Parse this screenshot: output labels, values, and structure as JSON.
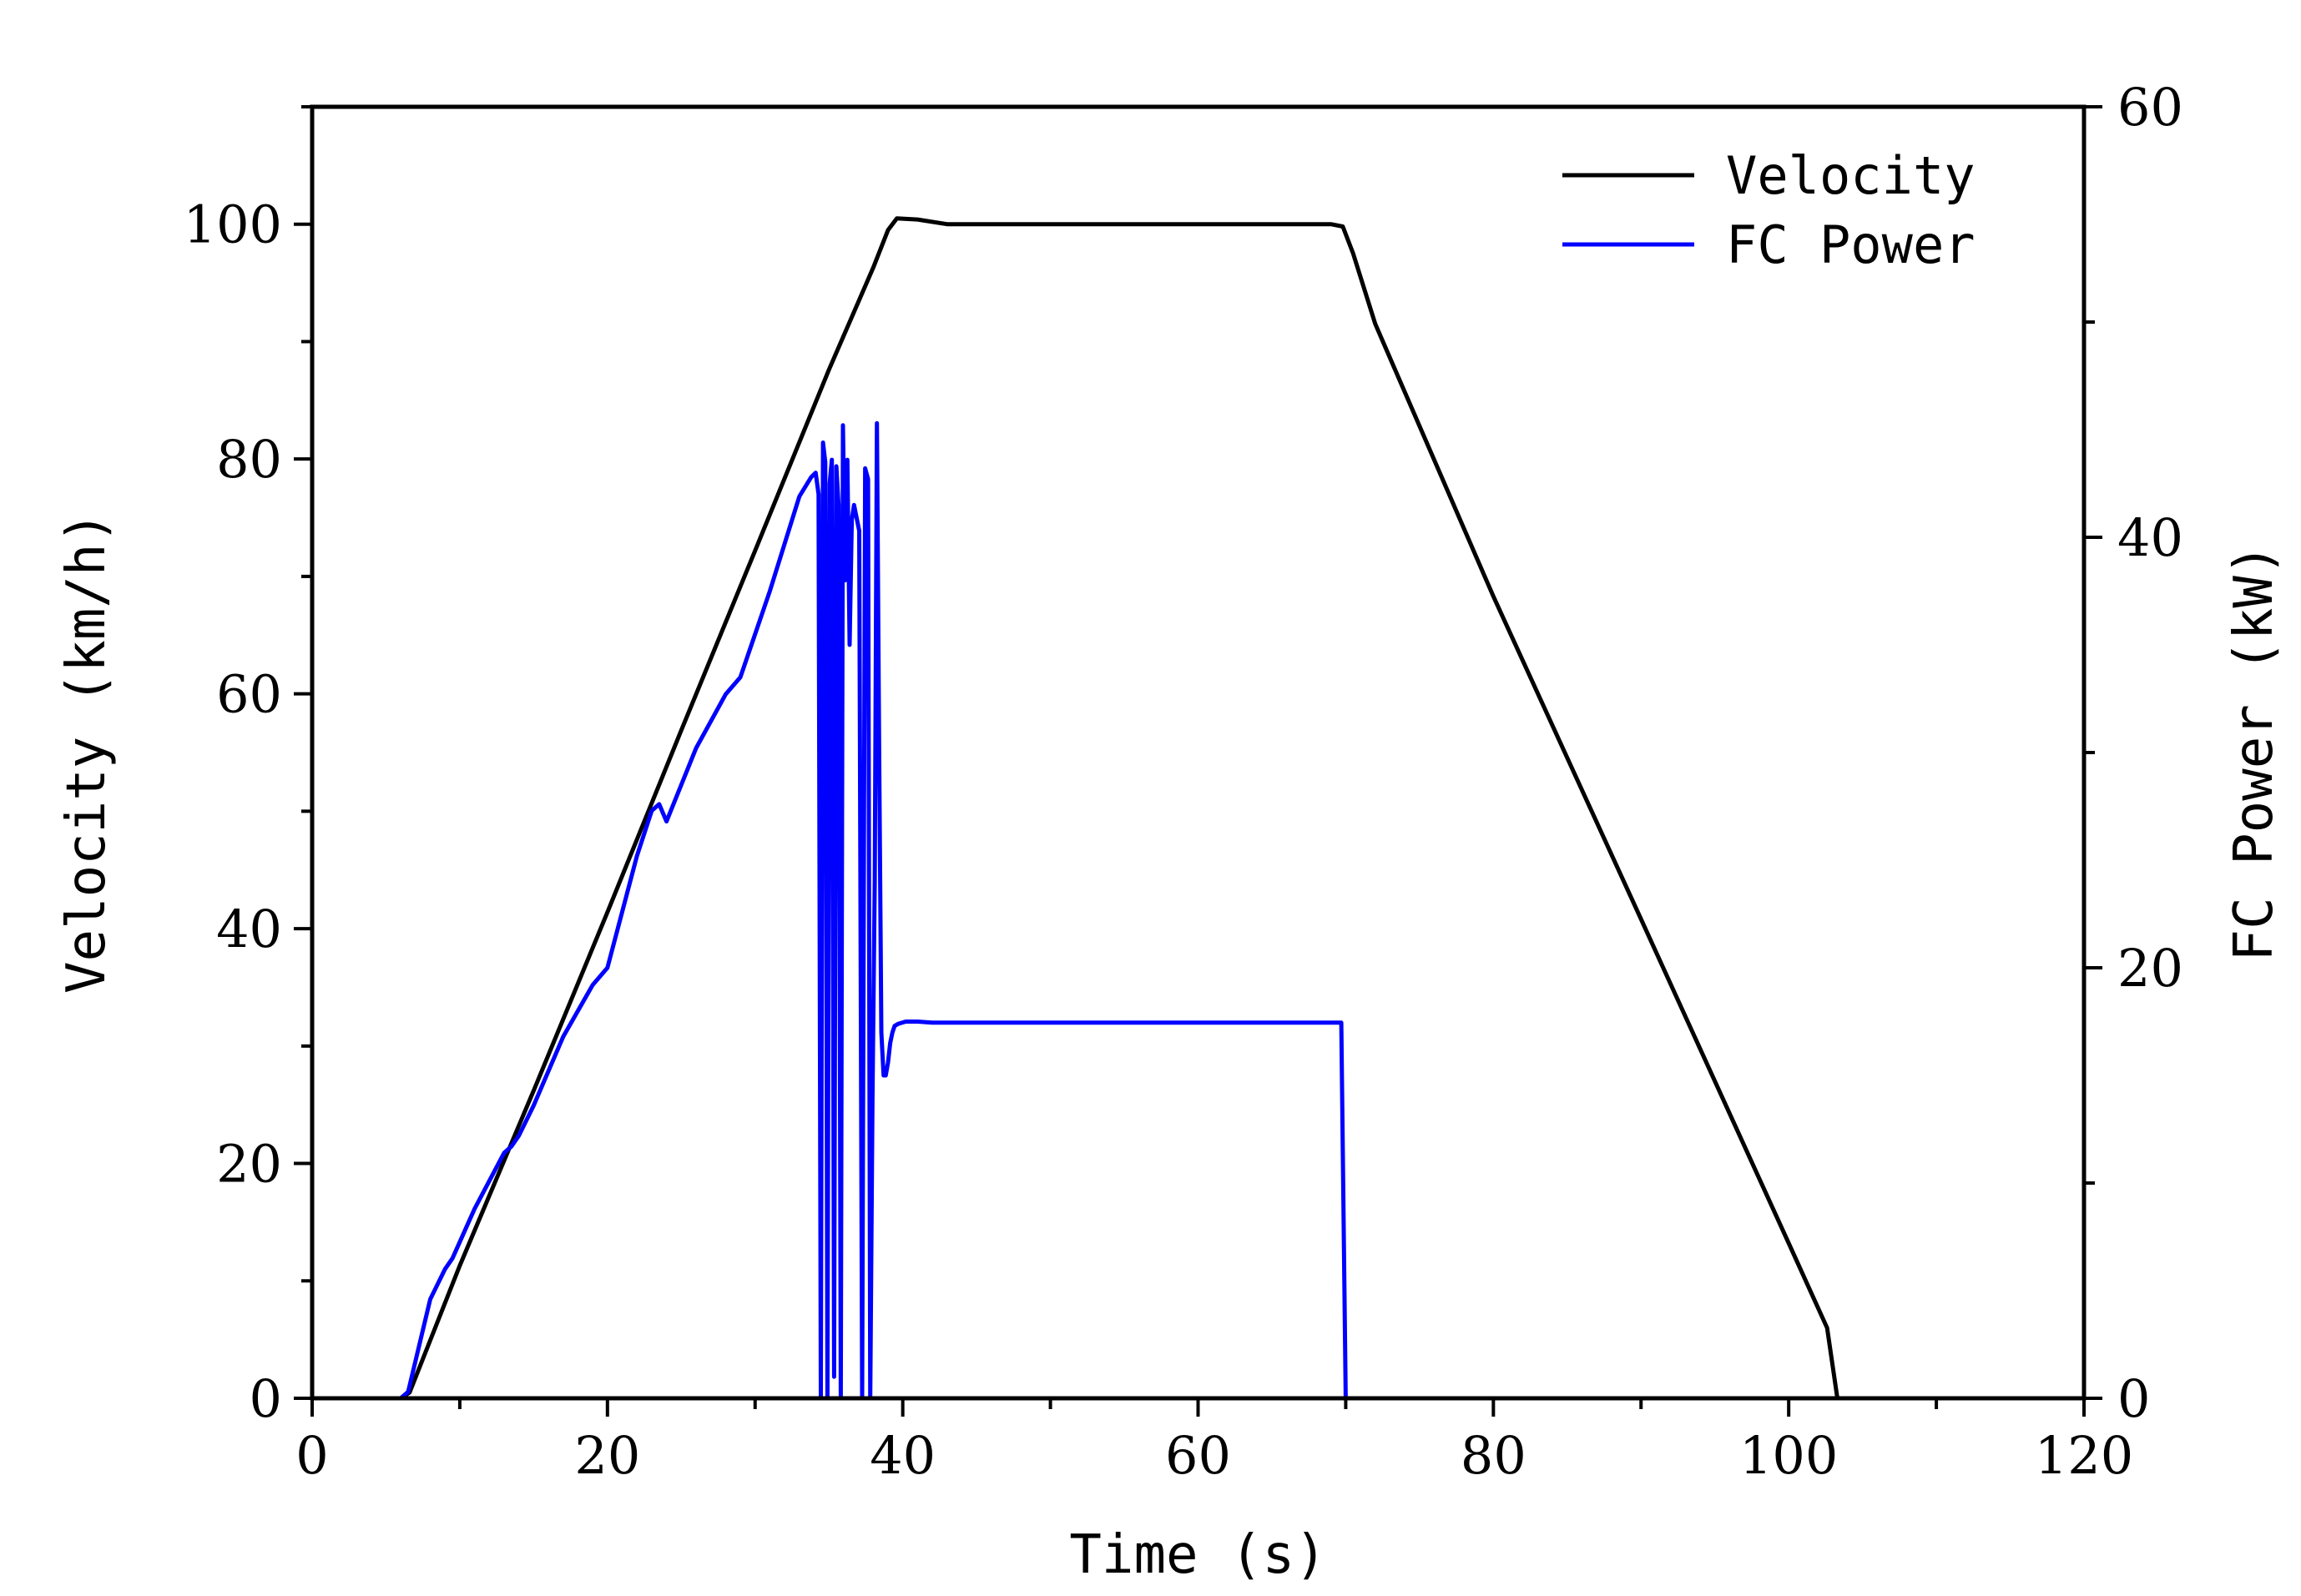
{
  "chart_data": {
    "type": "line",
    "xlabel": "Time (s)",
    "ylabel": "Velocity (km/h)",
    "y2label": "FC Power (kW)",
    "xlim": [
      0,
      120
    ],
    "ylim": [
      0,
      110
    ],
    "y2lim": [
      0,
      60
    ],
    "x_ticks": [
      0,
      20,
      40,
      60,
      80,
      100,
      120
    ],
    "y_ticks": [
      0,
      20,
      40,
      60,
      80,
      100
    ],
    "y2_ticks": [
      0,
      20,
      40,
      60
    ],
    "x_tick_labels": [
      "0",
      "20",
      "40",
      "60",
      "80",
      "100",
      "120"
    ],
    "y_tick_labels": [
      "0",
      "20",
      "40",
      "60",
      "80",
      "100"
    ],
    "y2_tick_labels": [
      "0",
      "20",
      "40",
      "60"
    ],
    "grid": false,
    "legend_position": "top-right",
    "legend": [
      "Velocity",
      "FC Power"
    ],
    "colors": {
      "Velocity": "#000000",
      "FC Power": "#0000ff"
    },
    "series": [
      {
        "name": "Velocity",
        "axis": "left",
        "x": [
          0,
          6,
          6.6,
          10,
          15,
          20,
          25,
          30,
          35,
          38,
          39,
          39.6,
          41,
          43,
          50,
          60,
          69,
          69.8,
          70.5,
          72,
          80,
          90,
          100,
          102.6,
          103.3,
          110
        ],
        "y": [
          0,
          0,
          0.5,
          11.3,
          26.2,
          41.4,
          56.9,
          72.2,
          87.6,
          96.3,
          99.5,
          100.5,
          100.4,
          100.0,
          100,
          100,
          100,
          99.8,
          97.5,
          91.5,
          68.3,
          40.8,
          13.2,
          6.0,
          0,
          0
        ]
      },
      {
        "name": "FC Power",
        "axis": "right",
        "x": [
          0,
          6,
          6.5,
          8,
          9,
          9.5,
          11,
          12,
          13,
          13.5,
          14,
          15,
          17,
          19,
          20,
          22,
          23,
          23.5,
          24,
          26,
          28,
          29,
          31,
          33,
          33.8,
          34.1,
          34.3,
          34.45,
          34.6,
          34.75,
          34.9,
          35.05,
          35.2,
          35.35,
          35.5,
          35.65,
          35.8,
          35.95,
          36.1,
          36.25,
          36.4,
          36.55,
          36.7,
          36.85,
          37.05,
          37.25,
          37.45,
          37.65,
          37.8,
          37.95,
          38.1,
          38.25,
          38.4,
          38.55,
          38.7,
          38.85,
          39.0,
          39.15,
          39.3,
          39.45,
          39.7,
          40.2,
          41,
          42,
          43,
          45,
          48,
          50,
          55,
          60,
          65,
          69.5,
          69.7,
          70.0,
          75,
          80,
          90,
          100,
          109
        ],
        "y": [
          0,
          0,
          0.3,
          4.6,
          6.0,
          6.5,
          8.8,
          10.1,
          11.4,
          11.7,
          12.2,
          13.6,
          16.8,
          19.2,
          20.0,
          25.2,
          27.3,
          27.6,
          26.8,
          30.2,
          32.7,
          33.5,
          37.5,
          41.9,
          42.8,
          43.0,
          42.0,
          0,
          44.4,
          43.5,
          0,
          42.5,
          43.6,
          1.0,
          43.3,
          41.5,
          0,
          45.2,
          38.0,
          43.6,
          35.0,
          40.8,
          41.5,
          41.0,
          40.3,
          0,
          43.2,
          42.7,
          0,
          14.0,
          24.0,
          45.3,
          30.0,
          17.0,
          15.0,
          15.0,
          15.6,
          16.5,
          17.0,
          17.3,
          17.4,
          17.5,
          17.5,
          17.45,
          17.45,
          17.45,
          17.45,
          17.45,
          17.45,
          17.45,
          17.45,
          17.45,
          17.45,
          0,
          0,
          0,
          0,
          0,
          0
        ]
      }
    ]
  }
}
